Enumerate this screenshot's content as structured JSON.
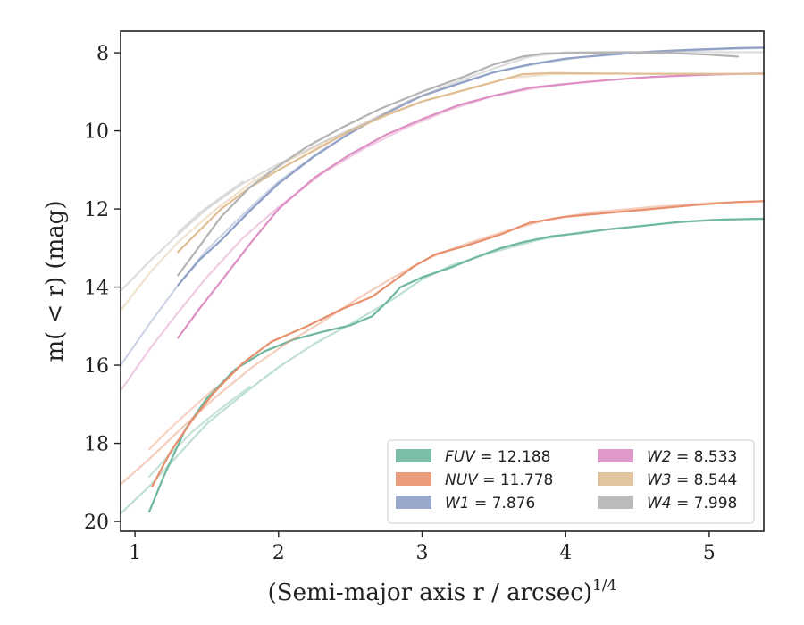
{
  "chart_data": {
    "type": "line",
    "xlabel": "(Semi-major axis r / arcsec)",
    "xlabel_superscript": "1/4",
    "ylabel": "m( < r) (mag)",
    "xlim": [
      0.9,
      5.38
    ],
    "ylim": [
      20.25,
      7.45
    ],
    "y_inverted": true,
    "x_ticks": [
      1,
      2,
      3,
      4,
      5
    ],
    "x_tick_labels": [
      "1",
      "2",
      "3",
      "4",
      "5"
    ],
    "y_ticks": [
      8,
      10,
      12,
      14,
      16,
      18,
      20
    ],
    "y_tick_labels": [
      "8",
      "10",
      "12",
      "14",
      "16",
      "18",
      "20"
    ],
    "grid": false,
    "legend_position": "bottom-right",
    "legend": [
      {
        "name": "FUV",
        "value": "12.188",
        "color": "#6fb79f"
      },
      {
        "name": "NUV",
        "value": "11.778",
        "color": "#e8906d"
      },
      {
        "name": "W1",
        "value": "7.876",
        "color": "#8f9fc6"
      },
      {
        "name": "W2",
        "value": "8.533",
        "color": "#dd8fc3"
      },
      {
        "name": "W3",
        "value": "8.544",
        "color": "#dfbe93"
      },
      {
        "name": "W4",
        "value": "7.998",
        "color": "#b4b4b4"
      }
    ],
    "series": [
      {
        "name": "FUV",
        "color": "#6fb79f",
        "dark": [
          [
            1.1,
            19.75
          ],
          [
            1.2,
            18.85
          ],
          [
            1.35,
            17.65
          ],
          [
            1.5,
            16.85
          ],
          [
            1.7,
            16.1
          ],
          [
            1.9,
            15.65
          ],
          [
            2.1,
            15.35
          ],
          [
            2.3,
            15.15
          ],
          [
            2.5,
            14.98
          ],
          [
            2.65,
            14.75
          ],
          [
            2.75,
            14.4
          ],
          [
            2.85,
            14.0
          ],
          [
            3.0,
            13.75
          ],
          [
            3.2,
            13.5
          ],
          [
            3.4,
            13.2
          ],
          [
            3.55,
            13.0
          ],
          [
            3.7,
            12.85
          ],
          [
            3.9,
            12.7
          ],
          [
            4.1,
            12.62
          ],
          [
            4.3,
            12.52
          ],
          [
            4.5,
            12.45
          ],
          [
            4.8,
            12.33
          ],
          [
            5.1,
            12.27
          ],
          [
            5.38,
            12.25
          ]
        ],
        "light": [
          [
            0.9,
            19.8
          ],
          [
            1.1,
            19.1
          ],
          [
            1.3,
            18.3
          ],
          [
            1.5,
            17.5
          ],
          [
            1.75,
            16.75
          ],
          [
            2.0,
            16.05
          ],
          [
            2.25,
            15.45
          ],
          [
            2.5,
            14.95
          ],
          [
            2.8,
            14.3
          ],
          [
            3.0,
            13.8
          ],
          [
            3.2,
            13.45
          ],
          [
            3.5,
            13.1
          ],
          [
            3.8,
            12.8
          ],
          [
            4.1,
            12.6
          ],
          [
            4.4,
            12.48
          ],
          [
            4.7,
            12.37
          ],
          [
            5.0,
            12.28
          ],
          [
            5.38,
            12.25
          ]
        ],
        "light2": [
          [
            1.1,
            18.85
          ],
          [
            1.25,
            18.25
          ],
          [
            1.4,
            17.7
          ],
          [
            1.6,
            17.1
          ],
          [
            1.8,
            16.55
          ]
        ]
      },
      {
        "name": "NUV",
        "color": "#e8906d",
        "dark": [
          [
            1.12,
            19.1
          ],
          [
            1.25,
            18.2
          ],
          [
            1.4,
            17.4
          ],
          [
            1.55,
            16.7
          ],
          [
            1.75,
            15.95
          ],
          [
            1.95,
            15.4
          ],
          [
            2.2,
            15.0
          ],
          [
            2.45,
            14.55
          ],
          [
            2.65,
            14.25
          ],
          [
            2.8,
            13.85
          ],
          [
            2.95,
            13.45
          ],
          [
            3.1,
            13.15
          ],
          [
            3.3,
            12.95
          ],
          [
            3.55,
            12.65
          ],
          [
            3.75,
            12.35
          ],
          [
            4.0,
            12.2
          ],
          [
            4.3,
            12.1
          ],
          [
            4.6,
            12.0
          ],
          [
            4.9,
            11.9
          ],
          [
            5.2,
            11.82
          ],
          [
            5.38,
            11.8
          ]
        ],
        "light": [
          [
            0.9,
            19.05
          ],
          [
            1.1,
            18.4
          ],
          [
            1.3,
            17.7
          ],
          [
            1.55,
            16.85
          ],
          [
            1.8,
            16.1
          ],
          [
            2.05,
            15.45
          ],
          [
            2.3,
            14.9
          ],
          [
            2.55,
            14.3
          ],
          [
            2.8,
            13.75
          ],
          [
            3.05,
            13.25
          ],
          [
            3.3,
            12.9
          ],
          [
            3.6,
            12.55
          ],
          [
            3.9,
            12.25
          ],
          [
            4.2,
            12.08
          ],
          [
            4.6,
            11.95
          ],
          [
            5.0,
            11.85
          ],
          [
            5.38,
            11.8
          ]
        ],
        "light2": [
          [
            1.1,
            18.15
          ],
          [
            1.25,
            17.6
          ],
          [
            1.4,
            17.1
          ],
          [
            1.55,
            16.6
          ]
        ]
      },
      {
        "name": "W1",
        "color": "#8f9fc6",
        "dark": [
          [
            1.3,
            13.95
          ],
          [
            1.45,
            13.3
          ],
          [
            1.6,
            12.8
          ],
          [
            1.8,
            12.05
          ],
          [
            2.0,
            11.35
          ],
          [
            2.25,
            10.65
          ],
          [
            2.5,
            10.05
          ],
          [
            2.75,
            9.55
          ],
          [
            3.0,
            9.1
          ],
          [
            3.25,
            8.8
          ],
          [
            3.5,
            8.5
          ],
          [
            3.75,
            8.3
          ],
          [
            4.0,
            8.15
          ],
          [
            4.3,
            8.05
          ],
          [
            4.6,
            7.97
          ],
          [
            4.9,
            7.92
          ],
          [
            5.2,
            7.88
          ],
          [
            5.38,
            7.87
          ]
        ],
        "light": [
          [
            0.9,
            16.0
          ],
          [
            1.1,
            14.95
          ],
          [
            1.3,
            13.95
          ],
          [
            1.5,
            13.05
          ],
          [
            1.75,
            12.15
          ],
          [
            2.0,
            11.3
          ],
          [
            2.3,
            10.5
          ],
          [
            2.6,
            9.85
          ],
          [
            2.9,
            9.25
          ],
          [
            3.2,
            8.85
          ],
          [
            3.5,
            8.5
          ],
          [
            3.8,
            8.28
          ],
          [
            4.1,
            8.12
          ],
          [
            4.5,
            8.0
          ],
          [
            5.0,
            7.92
          ],
          [
            5.38,
            7.88
          ]
        ]
      },
      {
        "name": "W2",
        "color": "#dd8fc3",
        "dark": [
          [
            1.3,
            15.3
          ],
          [
            1.45,
            14.55
          ],
          [
            1.6,
            13.85
          ],
          [
            1.8,
            12.9
          ],
          [
            2.0,
            12.0
          ],
          [
            2.25,
            11.2
          ],
          [
            2.5,
            10.6
          ],
          [
            2.75,
            10.1
          ],
          [
            3.0,
            9.7
          ],
          [
            3.25,
            9.35
          ],
          [
            3.5,
            9.1
          ],
          [
            3.75,
            8.9
          ],
          [
            4.0,
            8.8
          ],
          [
            4.3,
            8.7
          ],
          [
            4.6,
            8.62
          ],
          [
            4.9,
            8.57
          ],
          [
            5.2,
            8.54
          ],
          [
            5.38,
            8.53
          ]
        ],
        "light": [
          [
            0.9,
            16.65
          ],
          [
            1.1,
            15.6
          ],
          [
            1.3,
            14.65
          ],
          [
            1.5,
            13.75
          ],
          [
            1.75,
            12.75
          ],
          [
            2.0,
            11.95
          ],
          [
            2.3,
            11.1
          ],
          [
            2.6,
            10.45
          ],
          [
            2.9,
            9.9
          ],
          [
            3.2,
            9.45
          ],
          [
            3.5,
            9.1
          ],
          [
            3.8,
            8.9
          ],
          [
            4.1,
            8.76
          ],
          [
            4.5,
            8.64
          ],
          [
            5.0,
            8.56
          ],
          [
            5.38,
            8.53
          ]
        ]
      },
      {
        "name": "W3",
        "color": "#dfbe93",
        "dark": [
          [
            1.3,
            13.1
          ],
          [
            1.45,
            12.55
          ],
          [
            1.6,
            12.0
          ],
          [
            1.8,
            11.45
          ],
          [
            2.0,
            11.0
          ],
          [
            2.25,
            10.5
          ],
          [
            2.5,
            10.0
          ],
          [
            2.75,
            9.6
          ],
          [
            3.0,
            9.25
          ],
          [
            3.25,
            9.0
          ],
          [
            3.5,
            8.75
          ],
          [
            3.7,
            8.55
          ],
          [
            3.9,
            8.52
          ],
          [
            4.2,
            8.53
          ],
          [
            4.6,
            8.54
          ],
          [
            5.0,
            8.54
          ],
          [
            5.38,
            8.54
          ]
        ],
        "light": [
          [
            0.9,
            14.6
          ],
          [
            1.1,
            13.65
          ],
          [
            1.3,
            12.85
          ],
          [
            1.55,
            12.05
          ],
          [
            1.8,
            11.35
          ],
          [
            2.1,
            10.7
          ],
          [
            2.4,
            10.15
          ],
          [
            2.7,
            9.65
          ],
          [
            3.0,
            9.25
          ],
          [
            3.3,
            8.95
          ],
          [
            3.6,
            8.65
          ],
          [
            3.9,
            8.55
          ],
          [
            4.3,
            8.54
          ],
          [
            5.38,
            8.54
          ]
        ]
      },
      {
        "name": "W4",
        "color": "#b4b4b4",
        "dark": [
          [
            1.3,
            13.7
          ],
          [
            1.45,
            12.95
          ],
          [
            1.6,
            12.2
          ],
          [
            1.8,
            11.45
          ],
          [
            2.0,
            10.9
          ],
          [
            2.2,
            10.4
          ],
          [
            2.45,
            9.9
          ],
          [
            2.7,
            9.45
          ],
          [
            3.0,
            9.0
          ],
          [
            3.3,
            8.6
          ],
          [
            3.5,
            8.3
          ],
          [
            3.7,
            8.1
          ],
          [
            3.85,
            8.02
          ],
          [
            4.1,
            8.0
          ],
          [
            4.4,
            7.99
          ],
          [
            4.7,
            8.0
          ],
          [
            5.0,
            8.05
          ],
          [
            5.2,
            8.1
          ]
        ],
        "light": [
          [
            0.9,
            14.1
          ],
          [
            1.1,
            13.35
          ],
          [
            1.3,
            12.65
          ],
          [
            1.5,
            12.0
          ],
          [
            1.75,
            11.35
          ],
          [
            2.0,
            10.85
          ],
          [
            2.3,
            10.3
          ],
          [
            2.6,
            9.8
          ],
          [
            2.9,
            9.25
          ],
          [
            3.2,
            8.8
          ],
          [
            3.5,
            8.4
          ],
          [
            3.75,
            8.1
          ],
          [
            4.0,
            7.99
          ],
          [
            4.4,
            7.98
          ],
          [
            4.8,
            7.98
          ],
          [
            5.38,
            7.99
          ]
        ],
        "light2": [
          [
            1.3,
            12.6
          ],
          [
            1.45,
            12.1
          ],
          [
            1.6,
            11.7
          ],
          [
            1.75,
            11.3
          ]
        ]
      }
    ]
  }
}
